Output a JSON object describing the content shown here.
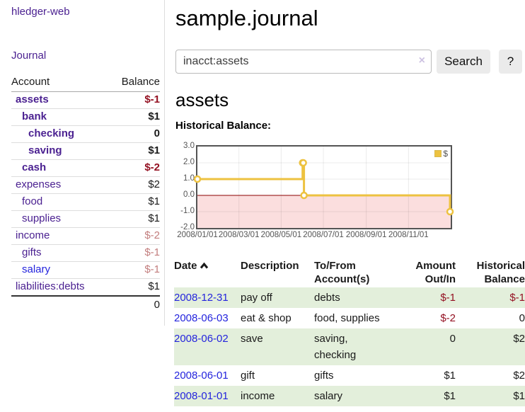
{
  "app_title": "hledger-web",
  "sidebar": {
    "journal_link": "Journal",
    "accounts": {
      "header": {
        "account": "Account",
        "balance": "Balance"
      },
      "rows": [
        {
          "account": "assets",
          "balance": "$-1",
          "indent": 1,
          "bold": true,
          "neg": "strong",
          "blue": false
        },
        {
          "account": "bank",
          "balance": "$1",
          "indent": 2,
          "bold": true,
          "neg": "none",
          "blue": false
        },
        {
          "account": "checking",
          "balance": "0",
          "indent": 3,
          "bold": true,
          "neg": "none",
          "blue": false
        },
        {
          "account": "saving",
          "balance": "$1",
          "indent": 3,
          "bold": true,
          "neg": "none",
          "blue": false
        },
        {
          "account": "cash",
          "balance": "$-2",
          "indent": 2,
          "bold": true,
          "neg": "strong",
          "blue": false
        },
        {
          "account": "expenses",
          "balance": "$2",
          "indent": 1,
          "bold": false,
          "neg": "none",
          "blue": false
        },
        {
          "account": "food",
          "balance": "$1",
          "indent": 2,
          "bold": false,
          "neg": "none",
          "blue": false
        },
        {
          "account": "supplies",
          "balance": "$1",
          "indent": 2,
          "bold": false,
          "neg": "none",
          "blue": false
        },
        {
          "account": "income",
          "balance": "$-2",
          "indent": 1,
          "bold": false,
          "neg": "soft",
          "blue": false
        },
        {
          "account": "gifts",
          "balance": "$-1",
          "indent": 2,
          "bold": false,
          "neg": "soft",
          "blue": false
        },
        {
          "account": "salary",
          "balance": "$-1",
          "indent": 2,
          "bold": false,
          "neg": "soft",
          "blue": true
        },
        {
          "account": "liabilities:debts",
          "balance": "$1",
          "indent": 1,
          "bold": false,
          "neg": "none",
          "blue": false
        }
      ],
      "total": "0"
    }
  },
  "main": {
    "title": "sample.journal",
    "search": {
      "value": "inacct:assets",
      "clear_label": "×",
      "search_button": "Search",
      "help_button": "?"
    },
    "account_heading": "assets",
    "chart_title": "Historical Balance:"
  },
  "chart_data": {
    "type": "line",
    "line_style": "step",
    "title": "Historical Balance",
    "legend": {
      "label": "$",
      "position": "top-right"
    },
    "epoch": "2008-01-01",
    "x_range_days": 366,
    "ylim": [
      -2,
      3
    ],
    "y_ticks": [
      "3.0",
      "2.0",
      "1.0",
      "0.0",
      "-1.0",
      "-2.0"
    ],
    "x_ticks": [
      "2008/01/01",
      "2008/03/01",
      "2008/05/01",
      "2008/07/01",
      "2008/09/01",
      "2008/11/01"
    ],
    "series": [
      {
        "name": "$",
        "color": "#edc240",
        "points": [
          [
            "2008-01-01",
            1
          ],
          [
            "2008-06-01",
            2
          ],
          [
            "2008-06-02",
            2
          ],
          [
            "2008-06-03",
            0
          ],
          [
            "2008-12-31",
            -1
          ]
        ]
      }
    ],
    "zero_line_color": "#8b0000",
    "negative_region_fill": "#fbdede",
    "grid": true
  },
  "register": {
    "headers": {
      "date": "Date",
      "description": "Description",
      "accounts": "To/From Account(s)",
      "amount": "Amount Out/In",
      "balance": "Historical Balance"
    },
    "rows": [
      {
        "date": "2008-12-31",
        "description": "pay off",
        "accounts": "debts",
        "amount": "$-1",
        "balance": "$-1"
      },
      {
        "date": "2008-06-03",
        "description": "eat & shop",
        "accounts": "food, supplies",
        "amount": "$-2",
        "balance": "0"
      },
      {
        "date": "2008-06-02",
        "description": "save",
        "accounts": "saving, checking",
        "amount": "0",
        "balance": "$2"
      },
      {
        "date": "2008-06-01",
        "description": "gift",
        "accounts": "gifts",
        "amount": "$1",
        "balance": "$2"
      },
      {
        "date": "2008-01-01",
        "description": "income",
        "accounts": "salary",
        "amount": "$1",
        "balance": "$1"
      }
    ]
  }
}
